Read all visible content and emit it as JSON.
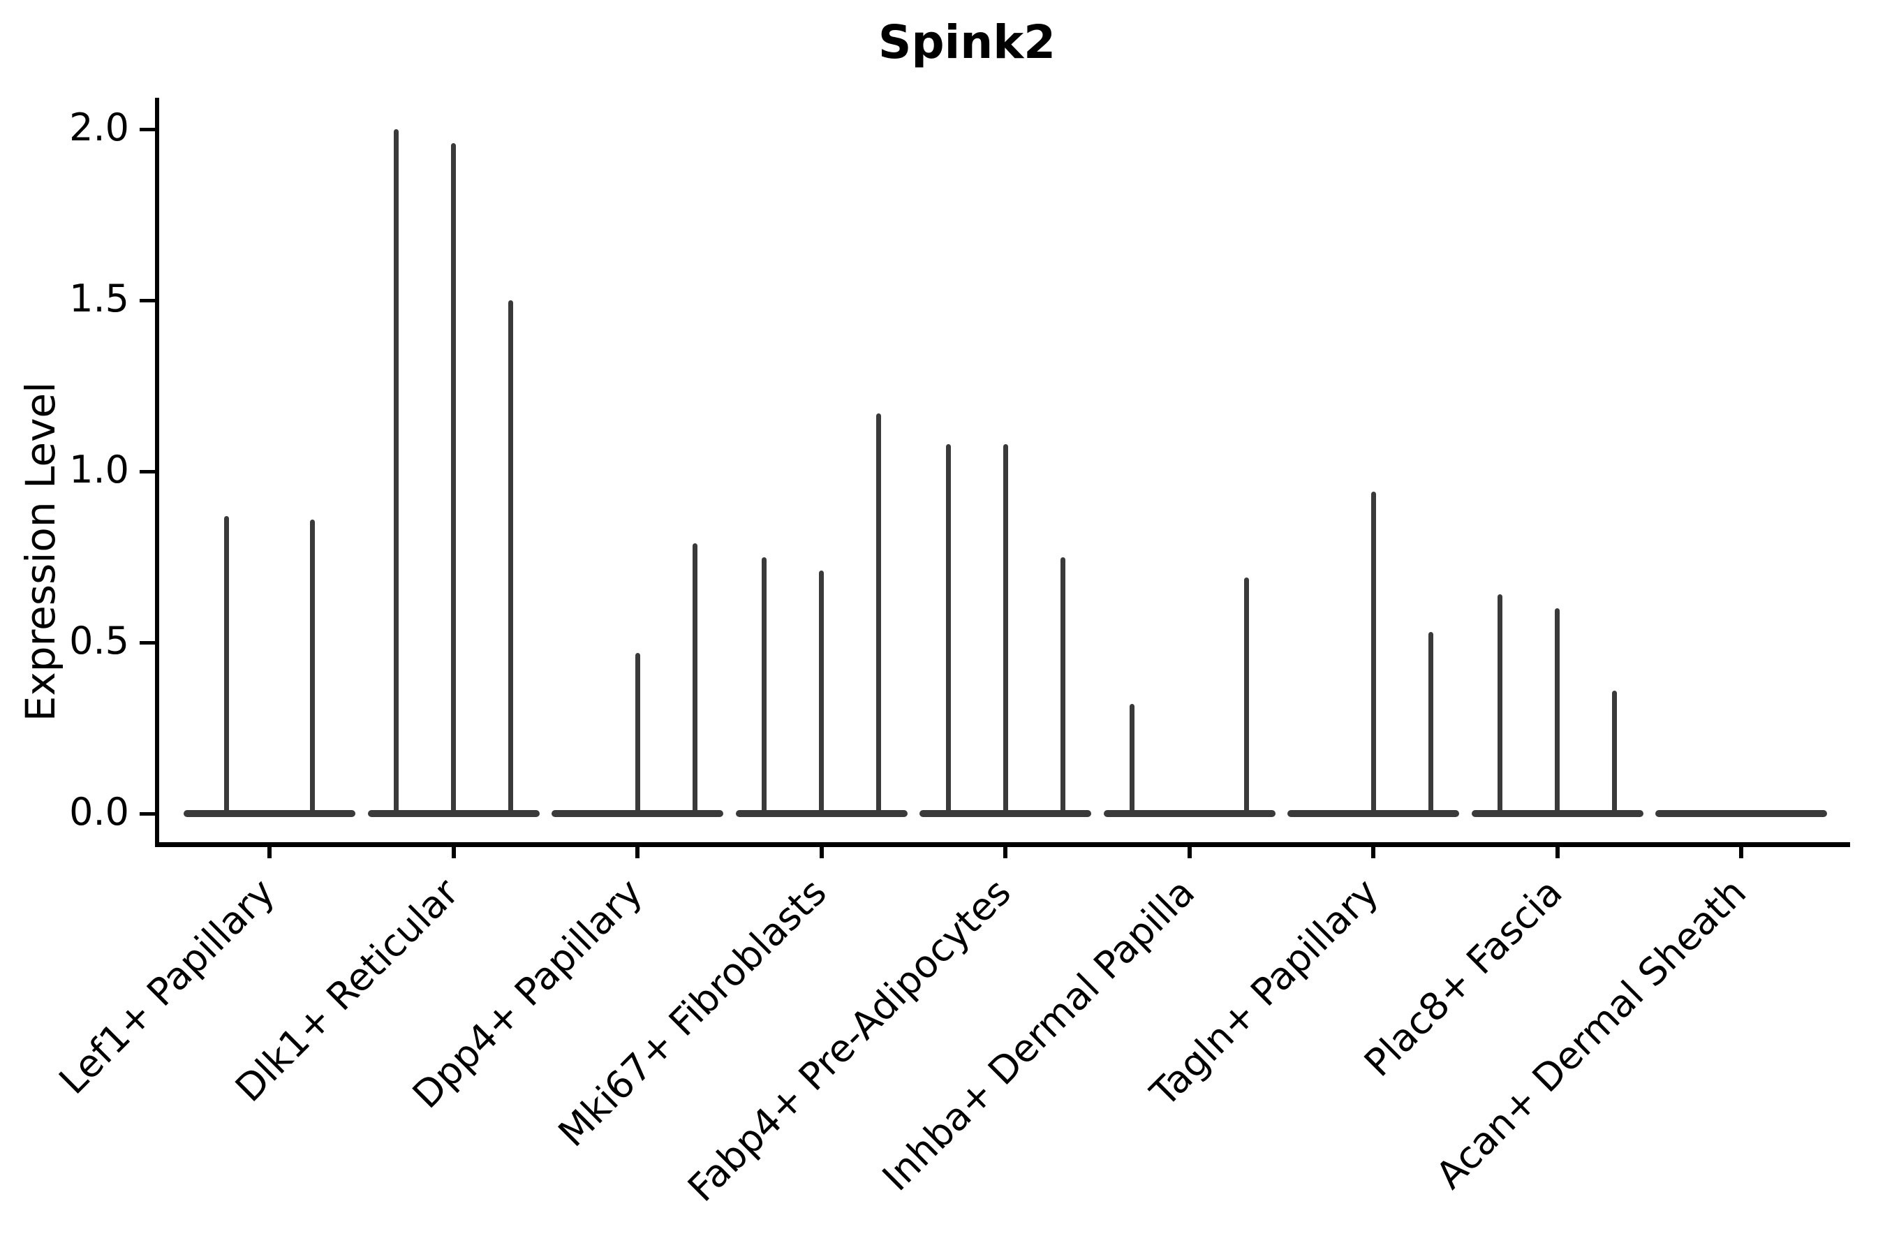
{
  "chart_data": {
    "type": "violin",
    "title": "Spink2",
    "xlabel": "",
    "ylabel": "Expression Level",
    "ylim": [
      0.0,
      2.05
    ],
    "yticks": [
      0.0,
      0.5,
      1.0,
      1.5,
      2.0
    ],
    "grid": false,
    "legend": "none",
    "violin_color": "#3a3a3a",
    "axis_color": "#000000",
    "categories": [
      "Lef1+ Papillary",
      "Dlk1+ Reticular",
      "Dpp4+ Papillary",
      "Mki67+ Fibroblasts",
      "Fabp4+ Pre-Adipocytes",
      "Inhba+ Dermal Papilla",
      "Tagln+ Papillary",
      "Plac8+ Fascia",
      "Acan+ Dermal Sheath"
    ],
    "violins": [
      {
        "category": "Lef1+ Papillary",
        "spike_maxima": [
          0.87,
          0.86
        ]
      },
      {
        "category": "Dlk1+ Reticular",
        "spike_maxima": [
          2.0,
          1.96,
          1.5
        ]
      },
      {
        "category": "Dpp4+ Papillary",
        "spike_maxima": [
          0.0,
          0.47,
          0.79
        ]
      },
      {
        "category": "Mki67+ Fibroblasts",
        "spike_maxima": [
          0.75,
          0.71,
          1.17
        ]
      },
      {
        "category": "Fabp4+ Pre-Adipocytes",
        "spike_maxima": [
          1.08,
          1.08,
          0.75
        ]
      },
      {
        "category": "Inhba+ Dermal Papilla",
        "spike_maxima": [
          0.32,
          0.0,
          0.69
        ]
      },
      {
        "category": "Tagln+ Papillary",
        "spike_maxima": [
          0.0,
          0.94,
          0.53
        ]
      },
      {
        "category": "Plac8+ Fascia",
        "spike_maxima": [
          0.64,
          0.6,
          0.36
        ]
      },
      {
        "category": "Acan+ Dermal Sheath",
        "spike_maxima": [
          0.0,
          0.0,
          0.0
        ]
      }
    ]
  }
}
